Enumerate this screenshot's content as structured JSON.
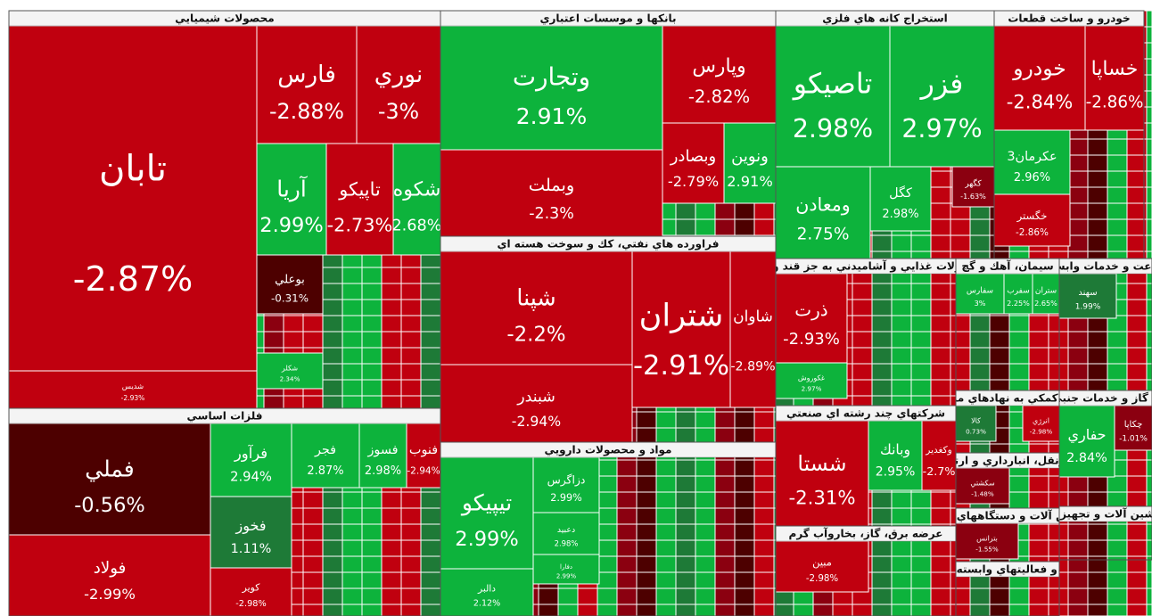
{
  "sectors": [
    {
      "title": "محصولات شيميايي",
      "tiles": [
        {
          "name": "تابان",
          "change": "-2.87%"
        },
        {
          "name": "فارس",
          "change": "-2.88%"
        },
        {
          "name": "نوري",
          "change": "-3%"
        },
        {
          "name": "آريا",
          "change": "2.99%"
        },
        {
          "name": "تاپيكو",
          "change": "-2.73%"
        },
        {
          "name": "شكوه",
          "change": "2.68%"
        },
        {
          "name": "بوعلي",
          "change": "-0.31%"
        },
        {
          "name": "شكلر",
          "change": "2.34%"
        },
        {
          "name": "شديس",
          "change": "-2.93%"
        }
      ]
    },
    {
      "title": "بانكها و موسسات اعتباري",
      "tiles": [
        {
          "name": "وتجارت",
          "change": "2.91%"
        },
        {
          "name": "وپارس",
          "change": "-2.82%"
        },
        {
          "name": "وبملت",
          "change": "-2.3%"
        },
        {
          "name": "وبصادر",
          "change": "-2.79%"
        },
        {
          "name": "ونوين",
          "change": "2.91%"
        }
      ]
    },
    {
      "title": "فراورده هاي نفتي، كك و سوخت هسته اي",
      "tiles": [
        {
          "name": "شپنا",
          "change": "-2.2%"
        },
        {
          "name": "شبندر",
          "change": "-2.94%"
        },
        {
          "name": "شتران",
          "change": "-2.91%"
        },
        {
          "name": "شاوان",
          "change": "-2.89%"
        }
      ]
    },
    {
      "title": "مواد و محصولات دارويي",
      "tiles": [
        {
          "name": "تيپيكو",
          "change": "2.99%"
        },
        {
          "name": "دالبر",
          "change": "2.12%"
        },
        {
          "name": "دزاگرس",
          "change": "2.99%"
        },
        {
          "name": "دعبيد",
          "change": "2.98%"
        },
        {
          "name": "دفارا",
          "change": "2.99%"
        }
      ]
    },
    {
      "title": "فلزات اساسي",
      "tiles": [
        {
          "name": "فملي",
          "change": "-0.56%"
        },
        {
          "name": "فولاد",
          "change": "-2.99%"
        },
        {
          "name": "فرآور",
          "change": "2.94%"
        },
        {
          "name": "فخوز",
          "change": "1.11%"
        },
        {
          "name": "كوير",
          "change": "-2.98%"
        },
        {
          "name": "فجر",
          "change": "2.87%"
        },
        {
          "name": "فسوز",
          "change": "2.98%"
        },
        {
          "name": "فنوب",
          "change": "-2.94%"
        }
      ]
    },
    {
      "title": "استخراج كانه هاي فلزي",
      "tiles": [
        {
          "name": "تاصيكو",
          "change": "2.98%"
        },
        {
          "name": "فزر",
          "change": "2.97%"
        },
        {
          "name": "ومعادن",
          "change": "2.75%"
        },
        {
          "name": "كگل",
          "change": "2.98%"
        },
        {
          "name": "كگهر",
          "change": "-1.63%"
        }
      ]
    },
    {
      "title": "خودرو و ساخت قطعات",
      "tiles": [
        {
          "name": "خودرو",
          "change": "-2.84%"
        },
        {
          "name": "خساپا",
          "change": "-2.86%"
        },
        {
          "name": "عكرمان3",
          "change": "2.96%"
        },
        {
          "name": "خگستر",
          "change": "-2.86%"
        }
      ]
    },
    {
      "title": "محصولات غذايي و آشاميدني به جز قند و شكر",
      "tiles": [
        {
          "name": "ذرت",
          "change": "-2.93%"
        },
        {
          "name": "غكوروش",
          "change": "2.97%"
        }
      ]
    },
    {
      "title": "شركتهاي چند رشته اي صنعتي",
      "tiles": [
        {
          "name": "شستا",
          "change": "-2.31%"
        },
        {
          "name": "وبانك",
          "change": "2.95%"
        },
        {
          "name": "وكغدير",
          "change": "-2.7%"
        }
      ]
    },
    {
      "title": "عرضه برق، گاز، بخاروآب گرم",
      "tiles": [
        {
          "name": "مبين",
          "change": "-2.98%"
        }
      ]
    },
    {
      "title": "سيمان، آهك و گچ",
      "tiles": [
        {
          "name": "سفارس",
          "change": "3%"
        },
        {
          "name": "سفرب",
          "change": "2.25%"
        },
        {
          "name": "ستران",
          "change": "2.65%"
        }
      ]
    },
    {
      "title": "زراعت و خدمات وابسته",
      "tiles": [
        {
          "name": "سهند",
          "change": "1.99%"
        }
      ]
    },
    {
      "title": "فعاليتهاي كمكي به نهادهاي مالي واسط",
      "tiles": [
        {
          "name": "كالا",
          "change": "0.73%"
        },
        {
          "name": "انرژي",
          "change": "-2.98%"
        }
      ]
    },
    {
      "title": "استخراج نفت گاز و خدمات جنبي جز اكتشاف",
      "tiles": [
        {
          "name": "حفاري",
          "change": "2.84%"
        },
        {
          "name": "چكاپا",
          "change": "-1.01%"
        }
      ]
    },
    {
      "title": "حمل ونقل، انبارداري و ارتباطات",
      "tiles": [
        {
          "name": "سكشتي",
          "change": "-1.48%"
        }
      ]
    },
    {
      "title": "ماشين آلات و دستگاههاي برقي",
      "tiles": [
        {
          "name": "بترانس",
          "change": "-1.55%"
        }
      ]
    },
    {
      "title": "رايانه و فعاليتهاي وابسته به آن",
      "tiles": []
    },
    {
      "title": "ماشين آلات و تجهيزات",
      "tiles": []
    }
  ]
}
